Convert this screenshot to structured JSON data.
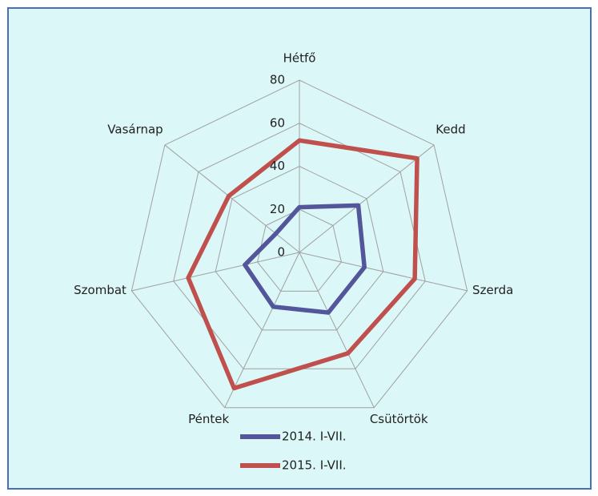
{
  "chart_data": {
    "type": "radar",
    "categories": [
      "Hétfő",
      "Kedd",
      "Szerda",
      "Csütörtök",
      "Péntek",
      "Szombat",
      "Vasárnap"
    ],
    "series": [
      {
        "name": "2014. I-VII.",
        "color": "#53569a",
        "values": [
          21,
          35,
          31,
          31,
          28,
          26,
          14
        ]
      },
      {
        "name": "2015. I-VII.",
        "color": "#c0504d",
        "values": [
          52,
          70,
          55,
          52,
          70,
          53,
          42
        ]
      }
    ],
    "ylim": [
      0,
      80
    ],
    "yticks": [
      0,
      20,
      40,
      60,
      80
    ],
    "grid": true
  }
}
